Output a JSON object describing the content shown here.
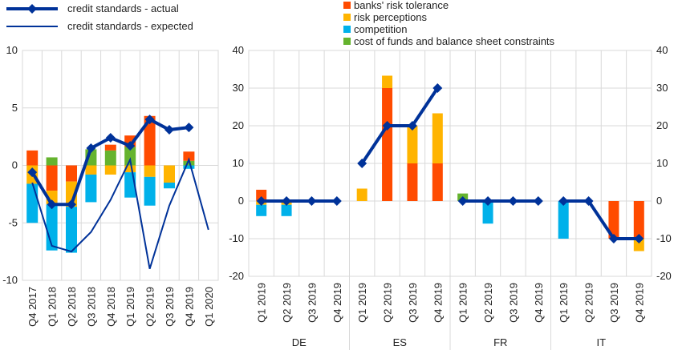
{
  "chart_data": [
    {
      "type": "bar",
      "panel": "left",
      "categories": [
        "Q4 2017",
        "Q1 2018",
        "Q2 2018",
        "Q3 2018",
        "Q4 2018",
        "Q1 2019",
        "Q2 2019",
        "Q3 2019",
        "Q4 2019",
        "Q1 2020"
      ],
      "ylim": [
        -10,
        10
      ],
      "yticks": [
        "-10",
        "-5",
        "0",
        "5",
        "10"
      ],
      "stacked_series": [
        {
          "key": "banks_risk_tolerance",
          "values": [
            1.3,
            -2.2,
            -1.4,
            0.0,
            0.5,
            1.0,
            4.3,
            0.0,
            0.8,
            null
          ]
        },
        {
          "key": "risk_perceptions",
          "values": [
            -1.6,
            -1.2,
            -2.2,
            -0.8,
            -0.8,
            -0.6,
            -1.0,
            -1.5,
            0.0,
            null
          ]
        },
        {
          "key": "competition",
          "values": [
            -3.4,
            -4.0,
            -4.0,
            -2.4,
            0.0,
            -2.2,
            -2.5,
            -0.5,
            -0.3,
            null
          ]
        },
        {
          "key": "cost_of_funds",
          "values": [
            0.0,
            0.7,
            0.0,
            1.4,
            1.3,
            1.6,
            0.0,
            0.0,
            0.4,
            null
          ]
        }
      ],
      "line_actual": [
        -0.6,
        -3.4,
        -3.4,
        1.5,
        2.4,
        1.7,
        4.0,
        3.1,
        3.3,
        null
      ],
      "line_expected": [
        -1.5,
        -7.0,
        -7.5,
        -5.8,
        -3.0,
        0.5,
        -9.0,
        -3.5,
        0.5,
        -5.6
      ]
    },
    {
      "type": "bar",
      "panel": "right",
      "ylim": [
        -20,
        40
      ],
      "yticks": [
        "-20",
        "-10",
        "0",
        "10",
        "20",
        "30",
        "40"
      ],
      "groups": [
        {
          "name": "DE",
          "categories": [
            "Q1 2019",
            "Q2 2019",
            "Q3 2019",
            "Q4 2019"
          ],
          "banks_risk_tolerance": [
            3.0,
            0.0,
            0.0,
            0.0
          ],
          "risk_perceptions": [
            -1.0,
            -1.0,
            0.0,
            0.0
          ],
          "competition": [
            -3.0,
            -3.0,
            0.0,
            0.0
          ],
          "cost_of_funds": [
            0.0,
            0.0,
            0.0,
            0.0
          ],
          "actual": [
            0,
            0,
            0,
            0
          ]
        },
        {
          "name": "ES",
          "categories": [
            "Q1 2019",
            "Q2 2019",
            "Q3 2019",
            "Q4 2019"
          ],
          "banks_risk_tolerance": [
            0.0,
            30.0,
            10.0,
            10.0
          ],
          "risk_perceptions": [
            3.3,
            3.3,
            10.0,
            13.3
          ],
          "competition": [
            0.0,
            0.0,
            0.0,
            0.0
          ],
          "cost_of_funds": [
            0.0,
            0.0,
            0.0,
            0.0
          ],
          "actual": [
            10,
            20,
            20,
            30
          ]
        },
        {
          "name": "FR",
          "categories": [
            "Q1 2019",
            "Q2 2019",
            "Q3 2019",
            "Q4 2019"
          ],
          "banks_risk_tolerance": [
            0.0,
            0.0,
            0.0,
            0.0
          ],
          "risk_perceptions": [
            0.0,
            0.0,
            0.0,
            0.0
          ],
          "competition": [
            0.0,
            -6.0,
            0.0,
            0.0
          ],
          "cost_of_funds": [
            2.0,
            0.0,
            0.0,
            0.0
          ],
          "actual": [
            0,
            0,
            0,
            0
          ]
        },
        {
          "name": "IT",
          "categories": [
            "Q1 2019",
            "Q2 2019",
            "Q3 2019",
            "Q4 2019"
          ],
          "banks_risk_tolerance": [
            0.0,
            0.0,
            -10.0,
            -10.0
          ],
          "risk_perceptions": [
            0.0,
            0.0,
            0.0,
            -3.3
          ],
          "competition": [
            -10.0,
            0.0,
            0.0,
            0.0
          ],
          "cost_of_funds": [
            0.0,
            0.0,
            0.0,
            0.0
          ],
          "actual": [
            0,
            0,
            -10,
            -10
          ]
        }
      ]
    }
  ],
  "legend_left": [
    {
      "key": "actual",
      "label": "credit standards - actual"
    },
    {
      "key": "expected",
      "label": "credit standards - expected"
    }
  ],
  "legend_right": [
    {
      "key": "banks_risk_tolerance",
      "label": "banks' risk tolerance"
    },
    {
      "key": "risk_perceptions",
      "label": "risk perceptions"
    },
    {
      "key": "competition",
      "label": "competition"
    },
    {
      "key": "cost_of_funds",
      "label": "cost of funds and balance sheet constraints"
    }
  ],
  "colors": {
    "banks_risk_tolerance": "#ff4b00",
    "risk_perceptions": "#ffb400",
    "competition": "#00b1ea",
    "cost_of_funds": "#65b32e",
    "actual": "#003299",
    "expected": "#003299"
  }
}
